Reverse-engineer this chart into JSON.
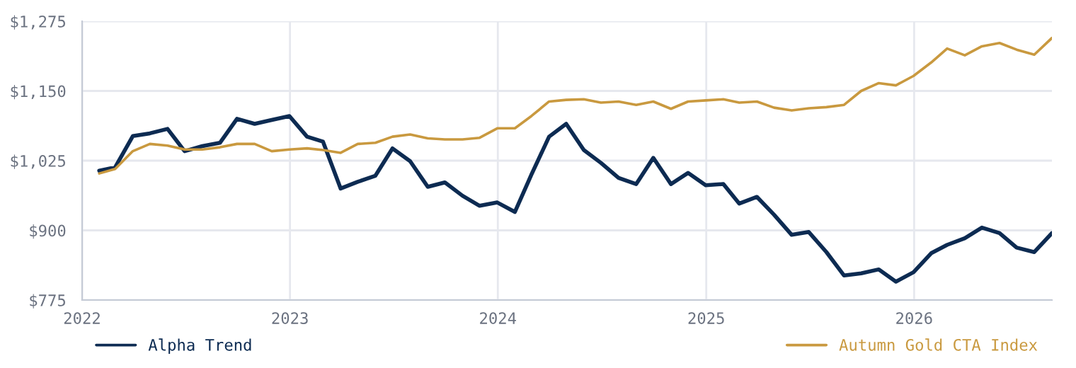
{
  "chart_data": {
    "type": "line",
    "x": [
      "2022-01-31",
      "2022-02-28",
      "2022-03-31",
      "2022-04-30",
      "2022-05-31",
      "2022-06-30",
      "2022-07-31",
      "2022-08-31",
      "2022-09-30",
      "2022-10-31",
      "2022-11-30",
      "2022-12-31",
      "2023-01-31",
      "2023-02-28",
      "2023-03-31",
      "2023-04-30",
      "2023-05-31",
      "2023-06-30",
      "2023-07-31",
      "2023-08-31",
      "2023-09-30",
      "2023-10-31",
      "2023-11-30",
      "2023-12-31",
      "2024-01-31",
      "2024-02-29",
      "2024-03-31",
      "2024-04-30",
      "2024-05-31",
      "2024-06-30",
      "2024-07-31",
      "2024-08-31",
      "2024-09-30",
      "2024-10-31",
      "2024-11-30",
      "2024-12-31",
      "2025-01-31",
      "2025-02-28",
      "2025-03-31",
      "2025-04-30",
      "2025-05-31",
      "2025-06-30",
      "2025-07-31",
      "2025-08-31",
      "2025-09-30",
      "2025-10-31",
      "2025-11-30",
      "2025-12-31",
      "2026-01-31",
      "2026-02-28",
      "2026-03-31",
      "2026-04-30",
      "2026-05-31",
      "2026-06-30",
      "2026-07-31",
      "2026-08-31"
    ],
    "series": [
      {
        "name": "Alpha Trend",
        "color": "#0d2b52",
        "values": [
          1007,
          1013,
          1069,
          1074,
          1082,
          1042,
          1051,
          1057,
          1100,
          1091,
          1098,
          1105,
          1068,
          1059,
          975,
          987,
          998,
          1047,
          1024,
          978,
          986,
          962,
          944,
          950,
          933,
          1000,
          1068,
          1091,
          1044,
          1021,
          994,
          983,
          1030,
          983,
          1003,
          981,
          983,
          948,
          960,
          928,
          892,
          897,
          861,
          819,
          823,
          830,
          808,
          825,
          859,
          874,
          886,
          905,
          895,
          869,
          861,
          895
        ]
      },
      {
        "name": "Autumn Gold CTA Index",
        "color": "#c9993f",
        "values": [
          1002,
          1010,
          1042,
          1055,
          1052,
          1045,
          1045,
          1049,
          1055,
          1055,
          1042,
          1045,
          1047,
          1044,
          1039,
          1055,
          1057,
          1068,
          1072,
          1065,
          1063,
          1063,
          1066,
          1083,
          1083,
          1105,
          1131,
          1134,
          1135,
          1129,
          1131,
          1125,
          1131,
          1118,
          1131,
          1133,
          1135,
          1129,
          1131,
          1120,
          1115,
          1119,
          1121,
          1125,
          1150,
          1164,
          1160,
          1177,
          1201,
          1226,
          1214,
          1230,
          1236,
          1224,
          1215,
          1245
        ]
      }
    ],
    "xlim": [
      "2022-01-01",
      "2026-08-31"
    ],
    "xticks": [
      "2022",
      "2023",
      "2024",
      "2025",
      "2026"
    ],
    "ylim": [
      775,
      1275
    ],
    "yticks": [
      {
        "value": 775,
        "label": "$775"
      },
      {
        "value": 900,
        "label": "$900"
      },
      {
        "value": 1025,
        "label": "$1,025"
      },
      {
        "value": 1150,
        "label": "$1,150"
      },
      {
        "value": 1275,
        "label": "$1,275"
      }
    ],
    "grid": true,
    "legend": "bottom",
    "marker": "none",
    "line_style": "solid"
  }
}
